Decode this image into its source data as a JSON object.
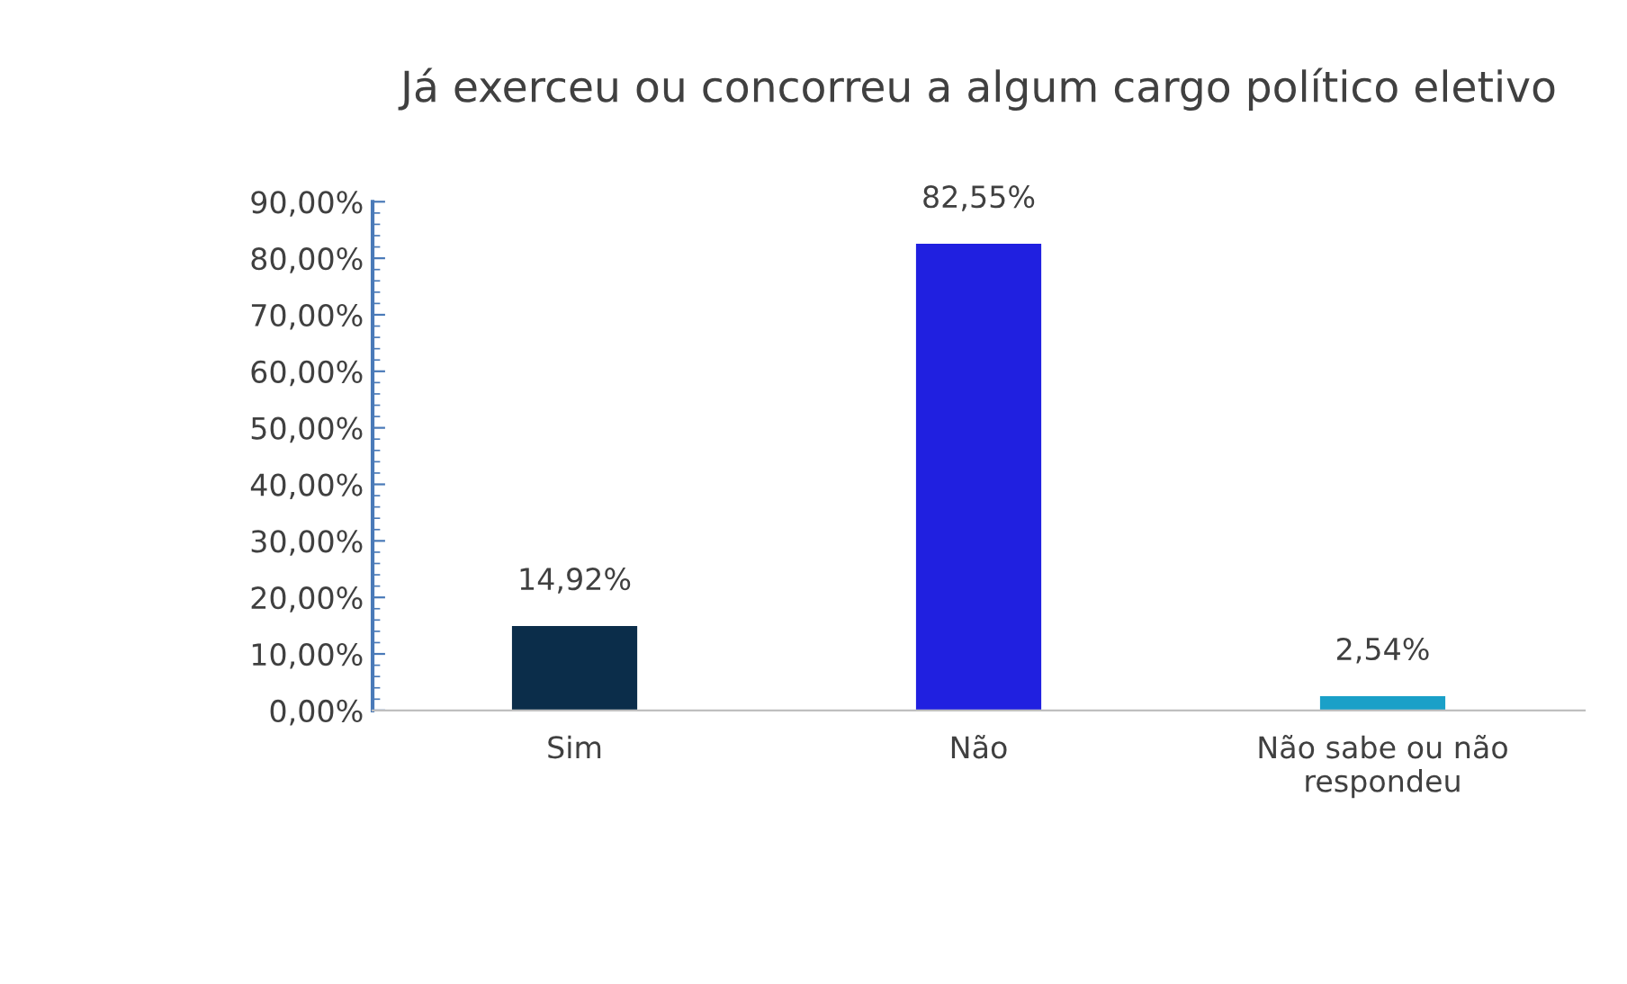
{
  "chart_data": {
    "type": "bar",
    "title": "Já exerceu ou concorreu a algum cargo político eletivo",
    "categories": [
      "Sim",
      "Não",
      "Não sabe ou não respondeu"
    ],
    "values": [
      14.92,
      82.55,
      2.54
    ],
    "colors": [
      "#0b2d4a",
      "#2020e0",
      "#1aa0c8"
    ],
    "value_labels": [
      "14,92%",
      "82,55%",
      "2,54%"
    ],
    "ylim": [
      0,
      90
    ],
    "yticks": [
      {
        "value": 0,
        "label": "0,00%"
      },
      {
        "value": 10,
        "label": "10,00%"
      },
      {
        "value": 20,
        "label": "20,00%"
      },
      {
        "value": 30,
        "label": "30,00%"
      },
      {
        "value": 40,
        "label": "40,00%"
      },
      {
        "value": 50,
        "label": "50,00%"
      },
      {
        "value": 60,
        "label": "60,00%"
      },
      {
        "value": 70,
        "label": "70,00%"
      },
      {
        "value": 80,
        "label": "80,00%"
      },
      {
        "value": 90,
        "label": "90,00%"
      }
    ],
    "grid": false
  }
}
